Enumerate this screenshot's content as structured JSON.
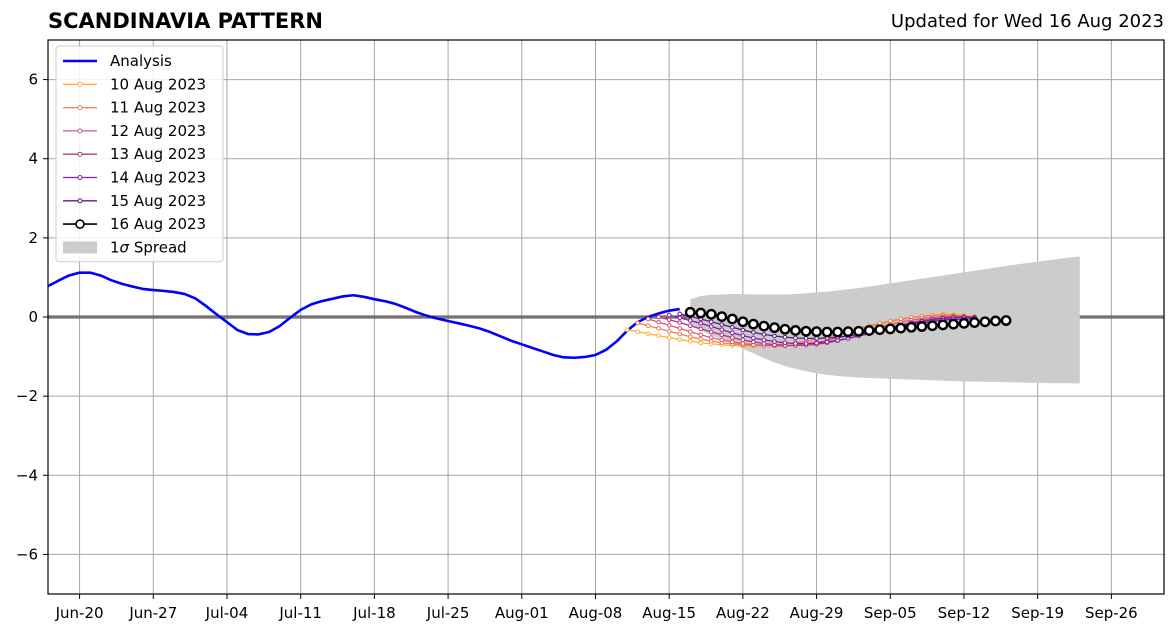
{
  "chart_data": {
    "type": "line",
    "title": "SCANDINAVIA PATTERN",
    "subtitle": "Updated for Wed 16 Aug 2023",
    "ylim": [
      -7,
      7
    ],
    "xlim": [
      "2023-06-17",
      "2023-10-01"
    ],
    "yticks": [
      -6,
      -4,
      -2,
      0,
      2,
      4,
      6
    ],
    "ytick_labels": [
      "−6",
      "−4",
      "−2",
      "0",
      "2",
      "4",
      "6"
    ],
    "xticks": [
      "2023-06-20",
      "2023-06-27",
      "2023-07-04",
      "2023-07-11",
      "2023-07-18",
      "2023-07-25",
      "2023-08-01",
      "2023-08-08",
      "2023-08-15",
      "2023-08-22",
      "2023-08-29",
      "2023-09-05",
      "2023-09-12",
      "2023-09-19",
      "2023-09-26"
    ],
    "xtick_labels": [
      "Jun-20",
      "Jun-27",
      "Jul-04",
      "Jul-11",
      "Jul-18",
      "Jul-25",
      "Aug-01",
      "Aug-08",
      "Aug-15",
      "Aug-22",
      "Aug-29",
      "Sep-05",
      "Sep-12",
      "Sep-19",
      "Sep-26"
    ],
    "grid": true,
    "legend_position": "top-left",
    "analysis": {
      "name": "Analysis",
      "color": "#0000ff",
      "x": [
        "2023-06-17",
        "2023-06-18",
        "2023-06-19",
        "2023-06-20",
        "2023-06-21",
        "2023-06-22",
        "2023-06-23",
        "2023-06-24",
        "2023-06-25",
        "2023-06-26",
        "2023-06-27",
        "2023-06-28",
        "2023-06-29",
        "2023-06-30",
        "2023-07-01",
        "2023-07-02",
        "2023-07-03",
        "2023-07-04",
        "2023-07-05",
        "2023-07-06",
        "2023-07-07",
        "2023-07-08",
        "2023-07-09",
        "2023-07-10",
        "2023-07-11",
        "2023-07-12",
        "2023-07-13",
        "2023-07-14",
        "2023-07-15",
        "2023-07-16",
        "2023-07-17",
        "2023-07-18",
        "2023-07-19",
        "2023-07-20",
        "2023-07-21",
        "2023-07-22",
        "2023-07-23",
        "2023-07-24",
        "2023-07-25",
        "2023-07-26",
        "2023-07-27",
        "2023-07-28",
        "2023-07-29",
        "2023-07-30",
        "2023-07-31",
        "2023-08-01",
        "2023-08-02",
        "2023-08-03",
        "2023-08-04",
        "2023-08-05",
        "2023-08-06",
        "2023-08-07",
        "2023-08-08",
        "2023-08-09",
        "2023-08-10",
        "2023-08-11",
        "2023-08-12",
        "2023-08-13",
        "2023-08-14",
        "2023-08-15",
        "2023-08-16"
      ],
      "values": [
        0.78,
        0.92,
        1.05,
        1.12,
        1.12,
        1.05,
        0.93,
        0.84,
        0.77,
        0.71,
        0.68,
        0.66,
        0.63,
        0.58,
        0.47,
        0.28,
        0.07,
        -0.13,
        -0.33,
        -0.43,
        -0.44,
        -0.38,
        -0.23,
        -0.02,
        0.18,
        0.32,
        0.4,
        0.46,
        0.52,
        0.55,
        0.51,
        0.45,
        0.4,
        0.33,
        0.23,
        0.12,
        0.03,
        -0.04,
        -0.1,
        -0.16,
        -0.22,
        -0.29,
        -0.38,
        -0.49,
        -0.6,
        -0.69,
        -0.78,
        -0.87,
        -0.96,
        -1.02,
        -1.03,
        -1.01,
        -0.96,
        -0.83,
        -0.62,
        -0.35,
        -0.13,
        0.0,
        0.09,
        0.16,
        0.2
      ]
    },
    "series": [
      {
        "name": "10 Aug 2023",
        "color": "#fcb135",
        "start": "2023-08-11",
        "values": [
          -0.32,
          -0.37,
          -0.42,
          -0.47,
          -0.52,
          -0.57,
          -0.61,
          -0.65,
          -0.68,
          -0.7,
          -0.72,
          -0.73,
          -0.73,
          -0.72,
          -0.71,
          -0.69,
          -0.66,
          -0.62,
          -0.57,
          -0.52,
          -0.46,
          -0.39,
          -0.32,
          -0.25,
          -0.19,
          -0.13,
          -0.07,
          -0.02,
          0.02,
          0.05,
          0.07,
          0.07,
          0.05,
          0.01
        ]
      },
      {
        "name": "11 Aug 2023",
        "color": "#f07e4e",
        "start": "2023-08-12",
        "values": [
          -0.15,
          -0.22,
          -0.29,
          -0.36,
          -0.43,
          -0.5,
          -0.56,
          -0.61,
          -0.65,
          -0.68,
          -0.7,
          -0.71,
          -0.71,
          -0.7,
          -0.68,
          -0.65,
          -0.61,
          -0.56,
          -0.5,
          -0.43,
          -0.36,
          -0.29,
          -0.22,
          -0.16,
          -0.1,
          -0.05,
          -0.01,
          0.02,
          0.04,
          0.05,
          0.04,
          0.02,
          0.0
        ]
      },
      {
        "name": "12 Aug 2023",
        "color": "#dc5971",
        "start": "2023-08-13",
        "values": [
          -0.05,
          -0.13,
          -0.21,
          -0.29,
          -0.37,
          -0.45,
          -0.52,
          -0.58,
          -0.63,
          -0.67,
          -0.7,
          -0.72,
          -0.73,
          -0.73,
          -0.71,
          -0.68,
          -0.64,
          -0.59,
          -0.53,
          -0.46,
          -0.39,
          -0.32,
          -0.25,
          -0.19,
          -0.13,
          -0.08,
          -0.04,
          -0.01,
          0.01,
          0.02,
          0.01,
          -0.01
        ]
      },
      {
        "name": "13 Aug 2023",
        "color": "#b5367a",
        "start": "2023-08-14",
        "values": [
          0.0,
          -0.07,
          -0.14,
          -0.22,
          -0.3,
          -0.38,
          -0.45,
          -0.52,
          -0.58,
          -0.63,
          -0.67,
          -0.7,
          -0.72,
          -0.72,
          -0.71,
          -0.69,
          -0.65,
          -0.6,
          -0.54,
          -0.47,
          -0.4,
          -0.33,
          -0.26,
          -0.2,
          -0.14,
          -0.09,
          -0.05,
          -0.02,
          0.0,
          0.01,
          0.0
        ]
      },
      {
        "name": "14 Aug 2023",
        "color": "#8a1da5",
        "start": "2023-08-15",
        "values": [
          0.05,
          -0.02,
          -0.09,
          -0.16,
          -0.24,
          -0.32,
          -0.4,
          -0.47,
          -0.53,
          -0.58,
          -0.62,
          -0.65,
          -0.67,
          -0.67,
          -0.66,
          -0.63,
          -0.59,
          -0.54,
          -0.48,
          -0.42,
          -0.35,
          -0.28,
          -0.22,
          -0.16,
          -0.11,
          -0.07,
          -0.04,
          -0.02,
          -0.01,
          -0.01
        ]
      },
      {
        "name": "15 Aug 2023",
        "color": "#5a1a8e",
        "start": "2023-08-16",
        "values": [
          0.08,
          0.02,
          -0.05,
          -0.12,
          -0.19,
          -0.26,
          -0.33,
          -0.39,
          -0.44,
          -0.48,
          -0.51,
          -0.53,
          -0.54,
          -0.54,
          -0.53,
          -0.51,
          -0.48,
          -0.44,
          -0.39,
          -0.34,
          -0.29,
          -0.24,
          -0.19,
          -0.15,
          -0.11,
          -0.08,
          -0.06,
          -0.05,
          -0.04
        ]
      },
      {
        "name": "16 Aug 2023",
        "color": "#000000",
        "start": "2023-08-17",
        "values": [
          0.12,
          0.1,
          0.07,
          0.01,
          -0.05,
          -0.12,
          -0.18,
          -0.23,
          -0.27,
          -0.31,
          -0.34,
          -0.36,
          -0.37,
          -0.38,
          -0.38,
          -0.37,
          -0.36,
          -0.34,
          -0.32,
          -0.3,
          -0.28,
          -0.26,
          -0.24,
          -0.22,
          -0.2,
          -0.18,
          -0.16,
          -0.14,
          -0.12,
          -0.1,
          -0.09
        ]
      }
    ],
    "spread": {
      "name": "1σ Spread",
      "color": "#cccccc",
      "start": "2023-08-17",
      "upper": [
        0.45,
        0.53,
        0.56,
        0.57,
        0.58,
        0.58,
        0.57,
        0.57,
        0.57,
        0.57,
        0.58,
        0.6,
        0.62,
        0.64,
        0.67,
        0.7,
        0.73,
        0.77,
        0.81,
        0.85,
        0.89,
        0.93,
        0.97,
        1.01,
        1.05,
        1.09,
        1.13,
        1.17,
        1.21,
        1.25,
        1.29,
        1.33,
        1.36,
        1.4,
        1.43,
        1.47,
        1.5,
        1.53
      ],
      "lower": [
        -0.21,
        -0.34,
        -0.46,
        -0.56,
        -0.68,
        -0.8,
        -0.92,
        -1.04,
        -1.15,
        -1.24,
        -1.31,
        -1.37,
        -1.42,
        -1.46,
        -1.49,
        -1.51,
        -1.53,
        -1.54,
        -1.55,
        -1.56,
        -1.57,
        -1.58,
        -1.59,
        -1.6,
        -1.61,
        -1.62,
        -1.63,
        -1.63,
        -1.64,
        -1.64,
        -1.65,
        -1.65,
        -1.66,
        -1.66,
        -1.67,
        -1.67,
        -1.67,
        -1.68
      ]
    },
    "legend": {
      "analysis": "Analysis",
      "spread_label_prefix": "1",
      "spread_label_symbol": "σ",
      "spread_label_suffix": " Spread"
    }
  }
}
